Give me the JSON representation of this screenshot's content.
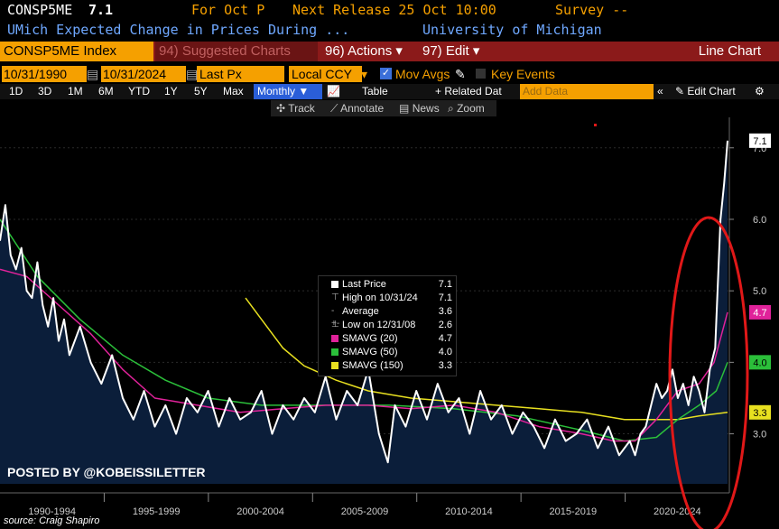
{
  "header": {
    "ticker": "CONSP5ME",
    "last": "7.1",
    "for_label": "For Oct P",
    "next_release": "Next Release 25 Oct 10:00",
    "survey": "Survey --",
    "description": "UMich Expected Change in Prices During ...",
    "source_name": "University of Michigan"
  },
  "toolbar": {
    "index_label": "CONSP5ME Index",
    "suggested_charts": "94) Suggested Charts",
    "actions": "96) Actions",
    "edit": "97) Edit",
    "chart_type": "Line Chart"
  },
  "settings": {
    "start_date": "10/31/1990",
    "end_date": "10/31/2024",
    "field": "Last Px",
    "currency": "Local CCY",
    "mov_avgs": "Mov Avgs",
    "key_events": "Key Events"
  },
  "periods": {
    "buttons": [
      "1D",
      "3D",
      "1M",
      "6M",
      "YTD",
      "1Y",
      "5Y",
      "Max"
    ],
    "frequency": "Monthly",
    "table": "Table",
    "related": "+ Related Dat",
    "add_data": "Add Data",
    "edit_chart": "Edit Chart"
  },
  "tools": {
    "track": "Track",
    "annotate": "Annotate",
    "news": "News",
    "zoom": "Zoom"
  },
  "legend": [
    {
      "label": "Last Price",
      "value": "7.1",
      "color": "#ffffff"
    },
    {
      "label": "High on 10/31/24",
      "value": "7.1",
      "color": "#ffffff"
    },
    {
      "label": "Average",
      "value": "3.6",
      "color": "#ffffff"
    },
    {
      "label": "Low on 12/31/08",
      "value": "2.6",
      "color": "#ffffff"
    },
    {
      "label": "SMAVG (20)",
      "value": "4.7",
      "color": "#e0229a"
    },
    {
      "label": "SMAVG (50)",
      "value": "4.0",
      "color": "#2bbf3a"
    },
    {
      "label": "SMAVG (150)",
      "value": "3.3",
      "color": "#e8e020"
    }
  ],
  "watermark": "POSTED BY @KOBEISSILETTER",
  "source_note": "source: Craig Shapiro",
  "chart_data": {
    "type": "line",
    "xlim": [
      1990.75,
      2024.83
    ],
    "ylim": [
      2.3,
      7.3
    ],
    "x_ticks": [
      "1990-1994",
      "1995-1999",
      "2000-2004",
      "2005-2009",
      "2010-2014",
      "2015-2019",
      "2020-2024"
    ],
    "y_ticks": [
      3.0,
      4.0,
      5.0,
      6.0,
      7.0
    ],
    "value_tags": [
      {
        "value": 7.1,
        "text": "7.1",
        "bg": "#ffffff",
        "fg": "#000000"
      },
      {
        "value": 4.7,
        "text": "4.7",
        "bg": "#e0229a",
        "fg": "#ffffff"
      },
      {
        "value": 4.0,
        "text": "4.0",
        "bg": "#2bbf3a",
        "fg": "#000000"
      },
      {
        "value": 3.3,
        "text": "3.3",
        "bg": "#e8e020",
        "fg": "#000000"
      }
    ],
    "series": [
      {
        "name": "Last Price",
        "color": "#ffffff",
        "x": [
          1990.75,
          1991.0,
          1991.25,
          1991.5,
          1991.75,
          1992.0,
          1992.25,
          1992.5,
          1992.75,
          1993.0,
          1993.25,
          1993.5,
          1993.75,
          1994.0,
          1994.5,
          1995.0,
          1995.5,
          1996.0,
          1996.5,
          1997.0,
          1997.5,
          1998.0,
          1998.5,
          1999.0,
          1999.5,
          2000.0,
          2000.5,
          2001.0,
          2001.5,
          2002.0,
          2002.5,
          2003.0,
          2003.5,
          2004.0,
          2004.5,
          2005.0,
          2005.5,
          2006.0,
          2006.5,
          2007.0,
          2007.5,
          2008.0,
          2008.5,
          2008.92,
          2009.25,
          2009.75,
          2010.25,
          2010.75,
          2011.25,
          2011.75,
          2012.25,
          2012.75,
          2013.25,
          2013.75,
          2014.25,
          2014.75,
          2015.25,
          2015.75,
          2016.25,
          2016.75,
          2017.25,
          2017.75,
          2018.25,
          2018.75,
          2019.25,
          2019.75,
          2020.25,
          2020.5,
          2020.75,
          2021.0,
          2021.25,
          2021.5,
          2021.75,
          2022.0,
          2022.25,
          2022.5,
          2022.75,
          2023.0,
          2023.25,
          2023.5,
          2023.75,
          2024.0,
          2024.25,
          2024.5,
          2024.67,
          2024.83
        ],
        "y": [
          5.7,
          6.2,
          5.5,
          5.3,
          5.6,
          5.0,
          4.9,
          5.4,
          4.8,
          4.5,
          4.9,
          4.3,
          4.6,
          4.1,
          4.5,
          4.0,
          3.7,
          4.1,
          3.5,
          3.2,
          3.6,
          3.1,
          3.4,
          3.0,
          3.5,
          3.3,
          3.6,
          3.1,
          3.5,
          3.2,
          3.3,
          3.6,
          3.0,
          3.4,
          3.2,
          3.5,
          3.3,
          3.8,
          3.2,
          3.6,
          3.4,
          3.9,
          3.0,
          2.6,
          3.4,
          3.1,
          3.6,
          3.2,
          3.7,
          3.3,
          3.5,
          3.0,
          3.6,
          3.2,
          3.4,
          3.0,
          3.3,
          3.1,
          2.8,
          3.2,
          2.9,
          3.0,
          3.2,
          2.8,
          3.1,
          2.7,
          2.9,
          2.7,
          3.0,
          3.1,
          3.4,
          3.7,
          3.5,
          3.6,
          3.9,
          3.5,
          3.7,
          3.4,
          3.8,
          3.6,
          3.3,
          3.9,
          4.2,
          6.0,
          6.5,
          7.1
        ]
      },
      {
        "name": "SMAVG (20)",
        "color": "#e0229a",
        "x": [
          1990.75,
          1992.0,
          1993.5,
          1995.0,
          1996.5,
          1998.0,
          2000.0,
          2002.0,
          2004.0,
          2006.0,
          2008.0,
          2010.0,
          2012.0,
          2014.0,
          2016.0,
          2018.0,
          2019.5,
          2020.5,
          2021.5,
          2022.5,
          2023.5,
          2024.2,
          2024.83
        ],
        "y": [
          5.3,
          5.2,
          4.8,
          4.4,
          3.9,
          3.5,
          3.4,
          3.3,
          3.35,
          3.4,
          3.4,
          3.35,
          3.4,
          3.3,
          3.1,
          3.0,
          2.9,
          2.9,
          3.2,
          3.6,
          3.7,
          4.0,
          4.7
        ]
      },
      {
        "name": "SMAVG (50)",
        "color": "#2bbf3a",
        "x": [
          1990.75,
          1992.5,
          1994.5,
          1996.5,
          1998.5,
          2000.5,
          2003.0,
          2006.0,
          2009.0,
          2012.0,
          2015.0,
          2018.0,
          2020.0,
          2021.5,
          2022.5,
          2023.5,
          2024.3,
          2024.83
        ],
        "y": [
          6.0,
          5.2,
          4.6,
          4.1,
          3.75,
          3.5,
          3.4,
          3.4,
          3.4,
          3.35,
          3.25,
          3.05,
          2.9,
          2.95,
          3.2,
          3.4,
          3.6,
          4.0
        ]
      },
      {
        "name": "SMAVG (150)",
        "color": "#e8e020",
        "x": [
          2002.25,
          2003.0,
          2004.0,
          2005.0,
          2006.5,
          2008.0,
          2010.0,
          2012.0,
          2014.0,
          2016.0,
          2018.0,
          2020.0,
          2021.5,
          2022.5,
          2023.5,
          2024.83
        ],
        "y": [
          4.9,
          4.6,
          4.2,
          3.95,
          3.75,
          3.6,
          3.5,
          3.45,
          3.4,
          3.35,
          3.3,
          3.2,
          3.2,
          3.2,
          3.25,
          3.3
        ]
      }
    ]
  }
}
